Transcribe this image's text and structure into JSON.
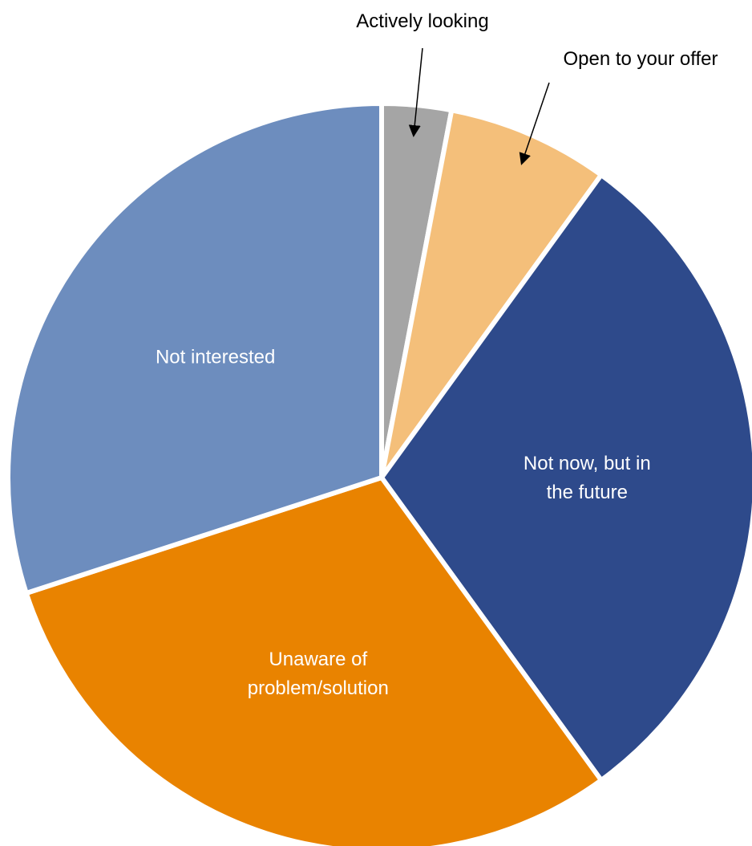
{
  "chart_data": {
    "type": "pie",
    "start_angle_deg": 0,
    "direction": "clockwise",
    "slices": [
      {
        "label": "Actively looking",
        "value": 3,
        "color": "#A5A5A5",
        "label_style": "callout",
        "text_color": "#000000"
      },
      {
        "label": "Open to your offer",
        "value": 7,
        "color": "#F4BF7A",
        "label_style": "callout",
        "text_color": "#000000"
      },
      {
        "label": "Not now, but in the future",
        "value": 30,
        "color": "#2E4A8B",
        "label_style": "inside",
        "text_color": "#FFFFFF"
      },
      {
        "label": "Unaware of problem/solution",
        "value": 30,
        "color": "#E98300",
        "label_style": "inside",
        "text_color": "#FFFFFF"
      },
      {
        "label": "Not interested",
        "value": 30,
        "color": "#6D8DBE",
        "label_style": "inside",
        "text_color": "#FFFFFF"
      }
    ],
    "inside_label_lines": [
      [
        "Not now, but in",
        "the future"
      ],
      [
        "Unaware of",
        "problem/solution"
      ],
      [
        "Not interested"
      ]
    ]
  }
}
